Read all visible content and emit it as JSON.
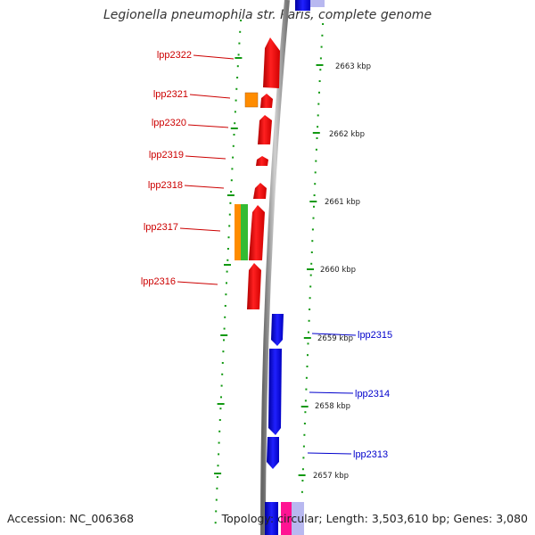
{
  "title": "Legionella pneumophila str. Paris, complete genome",
  "footer": {
    "accession": "Accession: NC_006368",
    "summary": "Topology: circular; Length: 3,503,610 bp; Genes: 3,080"
  },
  "ruler_ticks": [
    "2663 kbp",
    "2662 kbp",
    "2661 kbp",
    "2660 kbp",
    "2659 kbp",
    "2658 kbp",
    "2657 kbp"
  ],
  "gene_labels": {
    "forward": [
      "lpp2322",
      "lpp2321",
      "lpp2320",
      "lpp2319",
      "lpp2318",
      "lpp2317",
      "lpp2316"
    ],
    "reverse": [
      "lpp2315",
      "lpp2314",
      "lpp2313"
    ]
  },
  "colors": {
    "forward_cds": "#ff0000",
    "reverse_cds": "#0000ee",
    "orange_feature": "#ff8c00",
    "green_feature": "#33bb33",
    "pink_feature": "#ff1493",
    "tick_mark": "#119911",
    "backbone": "#888888",
    "forward_label": "#cc0000",
    "reverse_label": "#0000cc"
  }
}
